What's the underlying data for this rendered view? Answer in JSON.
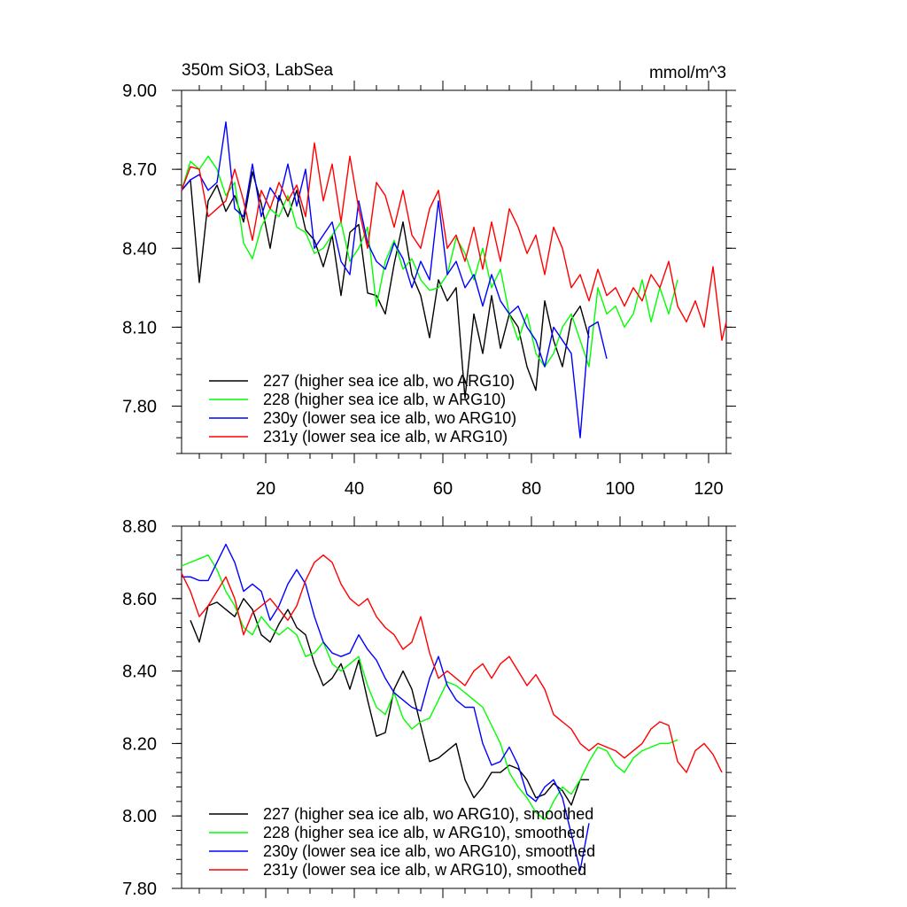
{
  "chart_data": [
    {
      "type": "line",
      "title": "350m SiO3, LabSea",
      "units": "mmol/m^3",
      "xlim": [
        1,
        124
      ],
      "ylim": [
        7.62,
        9.0
      ],
      "xticks": [
        20,
        40,
        60,
        80,
        100,
        120
      ],
      "xtick_labels": [
        "20",
        "40",
        "60",
        "80",
        "100",
        "120"
      ],
      "yticks": [
        7.8,
        8.1,
        8.4,
        8.7,
        9.0
      ],
      "ytick_labels": [
        "7.80",
        "8.10",
        "8.40",
        "8.70",
        "9.00"
      ],
      "legend_position": "bottom-left",
      "series": [
        {
          "name": "227 (higher sea ice alb, wo ARG10)",
          "color": "#000000",
          "x": [
            1,
            3,
            5,
            7,
            9,
            11,
            13,
            15,
            17,
            19,
            21,
            23,
            25,
            27,
            29,
            31,
            33,
            35,
            37,
            39,
            41,
            43,
            45,
            47,
            49,
            51,
            53,
            55,
            57,
            59,
            61,
            63,
            65,
            67,
            69,
            71,
            73,
            75,
            77,
            79,
            81,
            83,
            85,
            87,
            89,
            91,
            93
          ],
          "y": [
            8.62,
            8.66,
            8.27,
            8.58,
            8.64,
            8.54,
            8.6,
            8.5,
            8.69,
            8.57,
            8.4,
            8.6,
            8.52,
            8.62,
            8.47,
            8.43,
            8.33,
            8.45,
            8.22,
            8.46,
            8.49,
            8.23,
            8.22,
            8.15,
            8.34,
            8.5,
            8.3,
            8.22,
            8.06,
            8.28,
            8.2,
            8.25,
            7.83,
            8.15,
            8.0,
            8.22,
            8.02,
            8.15,
            8.1,
            7.95,
            7.86,
            8.2,
            8.05,
            7.95,
            8.13,
            8.18,
            8.06
          ]
        },
        {
          "name": "228 (higher sea ice alb, w ARG10)",
          "color": "#00ff00",
          "x": [
            1,
            3,
            5,
            7,
            9,
            11,
            13,
            15,
            17,
            19,
            21,
            23,
            25,
            27,
            29,
            31,
            33,
            35,
            37,
            39,
            41,
            43,
            45,
            47,
            49,
            51,
            53,
            55,
            57,
            59,
            61,
            63,
            65,
            67,
            69,
            71,
            73,
            75,
            77,
            79,
            81,
            83,
            85,
            87,
            89,
            91,
            93,
            95,
            97,
            99,
            101,
            103,
            105,
            107,
            109,
            111,
            113
          ],
          "y": [
            8.62,
            8.73,
            8.7,
            8.75,
            8.7,
            8.6,
            8.65,
            8.42,
            8.36,
            8.48,
            8.55,
            8.52,
            8.6,
            8.48,
            8.46,
            8.38,
            8.4,
            8.45,
            8.5,
            8.35,
            8.4,
            8.48,
            8.18,
            8.35,
            8.43,
            8.32,
            8.36,
            8.28,
            8.24,
            8.25,
            8.3,
            8.44,
            8.38,
            8.28,
            8.4,
            8.25,
            8.32,
            8.15,
            8.05,
            8.15,
            8.0,
            7.95,
            8.0,
            8.1,
            8.15,
            8.05,
            7.95,
            8.25,
            8.15,
            8.18,
            8.1,
            8.15,
            8.28,
            8.12,
            8.25,
            8.15,
            8.28
          ]
        },
        {
          "name": "230y (lower sea ice alb, wo ARG10)",
          "color": "#0000ff",
          "x": [
            1,
            3,
            5,
            7,
            9,
            11,
            13,
            15,
            17,
            19,
            21,
            23,
            25,
            27,
            29,
            31,
            33,
            35,
            37,
            39,
            41,
            43,
            45,
            47,
            49,
            51,
            53,
            55,
            57,
            59,
            61,
            63,
            65,
            67,
            69,
            71,
            73,
            75,
            77,
            79,
            81,
            83,
            85,
            87,
            89,
            91,
            93,
            95,
            97
          ],
          "y": [
            8.62,
            8.66,
            8.68,
            8.62,
            8.65,
            8.88,
            8.55,
            8.52,
            8.72,
            8.52,
            8.63,
            8.58,
            8.72,
            8.56,
            8.7,
            8.4,
            8.45,
            8.5,
            8.35,
            8.3,
            8.58,
            8.42,
            8.35,
            8.32,
            8.42,
            8.36,
            8.25,
            8.35,
            8.28,
            8.58,
            8.3,
            8.35,
            8.25,
            8.3,
            8.18,
            8.3,
            8.2,
            8.15,
            8.18,
            8.1,
            8.05,
            7.95,
            8.1,
            8.05,
            8.0,
            7.68,
            8.1,
            8.12,
            7.98
          ]
        },
        {
          "name": "231y (lower sea ice alb, w ARG10)",
          "color": "#ff0000",
          "x": [
            1,
            3,
            5,
            7,
            9,
            11,
            13,
            15,
            17,
            19,
            21,
            23,
            25,
            27,
            29,
            31,
            33,
            35,
            37,
            39,
            41,
            43,
            45,
            47,
            49,
            51,
            53,
            55,
            57,
            59,
            61,
            63,
            65,
            67,
            69,
            71,
            73,
            75,
            77,
            79,
            81,
            83,
            85,
            87,
            89,
            91,
            93,
            95,
            97,
            99,
            101,
            103,
            105,
            107,
            109,
            111,
            113,
            115,
            117,
            119,
            121,
            123,
            124
          ],
          "y": [
            8.62,
            8.71,
            8.7,
            8.52,
            8.55,
            8.58,
            8.7,
            8.58,
            8.43,
            8.62,
            8.55,
            8.65,
            8.58,
            8.64,
            8.52,
            8.8,
            8.58,
            8.72,
            8.5,
            8.75,
            8.55,
            8.4,
            8.65,
            8.6,
            8.48,
            8.62,
            8.45,
            8.4,
            8.55,
            8.62,
            8.4,
            8.45,
            8.35,
            8.48,
            8.32,
            8.5,
            8.35,
            8.55,
            8.48,
            8.38,
            8.45,
            8.3,
            8.48,
            8.4,
            8.25,
            8.3,
            8.2,
            8.32,
            8.22,
            8.25,
            8.18,
            8.25,
            8.2,
            8.3,
            8.25,
            8.35,
            8.18,
            8.12,
            8.2,
            8.1,
            8.33,
            8.05,
            8.12
          ]
        }
      ]
    },
    {
      "type": "line",
      "xlim": [
        1,
        124
      ],
      "ylim": [
        7.8,
        8.8
      ],
      "xticks": [
        20,
        40,
        60,
        80,
        100,
        120
      ],
      "yticks": [
        7.8,
        8.0,
        8.2,
        8.4,
        8.6,
        8.8
      ],
      "ytick_labels": [
        "7.80",
        "8.00",
        "8.20",
        "8.40",
        "8.60",
        "8.80"
      ],
      "legend_position": "bottom-left",
      "series": [
        {
          "name": "227 (higher sea ice alb, wo ARG10), smoothed",
          "color": "#000000",
          "x": [
            3,
            5,
            7,
            9,
            11,
            13,
            15,
            17,
            19,
            21,
            23,
            25,
            27,
            29,
            31,
            33,
            35,
            37,
            39,
            41,
            43,
            45,
            47,
            49,
            51,
            53,
            55,
            57,
            59,
            61,
            63,
            65,
            67,
            69,
            71,
            73,
            75,
            77,
            79,
            81,
            83,
            85,
            87,
            89,
            91,
            93
          ],
          "y": [
            8.54,
            8.48,
            8.58,
            8.59,
            8.57,
            8.55,
            8.6,
            8.57,
            8.5,
            8.48,
            8.53,
            8.57,
            8.52,
            8.5,
            8.42,
            8.36,
            8.38,
            8.42,
            8.35,
            8.43,
            8.32,
            8.22,
            8.23,
            8.35,
            8.4,
            8.35,
            8.25,
            8.15,
            8.16,
            8.18,
            8.2,
            8.1,
            8.05,
            8.08,
            8.12,
            8.12,
            8.14,
            8.13,
            8.1,
            8.05,
            8.06,
            8.09,
            8.07,
            8.03,
            8.1,
            8.1
          ]
        },
        {
          "name": "228 (higher sea ice alb, w ARG10), smoothed",
          "color": "#00ff00",
          "x": [
            1,
            3,
            5,
            7,
            9,
            11,
            13,
            15,
            17,
            19,
            21,
            23,
            25,
            27,
            29,
            31,
            33,
            35,
            37,
            39,
            41,
            43,
            45,
            47,
            49,
            51,
            53,
            55,
            57,
            59,
            61,
            63,
            65,
            67,
            69,
            71,
            73,
            75,
            77,
            79,
            81,
            83,
            85,
            87,
            89,
            91,
            93,
            95,
            97,
            99,
            101,
            103,
            105,
            107,
            109,
            111,
            113
          ],
          "y": [
            8.69,
            8.7,
            8.71,
            8.72,
            8.68,
            8.62,
            8.58,
            8.52,
            8.5,
            8.55,
            8.52,
            8.5,
            8.52,
            8.5,
            8.44,
            8.45,
            8.48,
            8.42,
            8.4,
            8.42,
            8.44,
            8.36,
            8.3,
            8.28,
            8.34,
            8.27,
            8.24,
            8.26,
            8.27,
            8.32,
            8.37,
            8.36,
            8.34,
            8.32,
            8.3,
            8.25,
            8.2,
            8.12,
            8.08,
            8.05,
            8.01,
            7.99,
            8.04,
            8.08,
            8.06,
            8.1,
            8.15,
            8.19,
            8.18,
            8.14,
            8.12,
            8.16,
            8.18,
            8.19,
            8.2,
            8.2,
            8.21
          ]
        },
        {
          "name": "230y (lower sea ice alb, wo ARG10), smoothed",
          "color": "#0000ff",
          "x": [
            1,
            3,
            5,
            7,
            9,
            11,
            13,
            15,
            17,
            19,
            21,
            23,
            25,
            27,
            29,
            31,
            33,
            35,
            37,
            39,
            41,
            43,
            45,
            47,
            49,
            51,
            53,
            55,
            57,
            59,
            61,
            63,
            65,
            67,
            69,
            71,
            73,
            75,
            77,
            79,
            81,
            83,
            85,
            87,
            89,
            91,
            93
          ],
          "y": [
            8.66,
            8.66,
            8.65,
            8.65,
            8.7,
            8.75,
            8.7,
            8.62,
            8.64,
            8.62,
            8.54,
            8.58,
            8.64,
            8.68,
            8.64,
            8.55,
            8.48,
            8.45,
            8.44,
            8.45,
            8.5,
            8.46,
            8.43,
            8.38,
            8.34,
            8.32,
            8.3,
            8.29,
            8.38,
            8.44,
            8.36,
            8.32,
            8.3,
            8.3,
            8.2,
            8.14,
            8.15,
            8.19,
            8.14,
            8.06,
            8.04,
            8.08,
            8.1,
            8.05,
            7.95,
            7.85,
            7.98
          ]
        },
        {
          "name": "231y (lower sea ice alb, w ARG10), smoothed",
          "color": "#ff0000",
          "x": [
            1,
            3,
            5,
            7,
            9,
            11,
            13,
            15,
            17,
            19,
            21,
            23,
            25,
            27,
            29,
            31,
            33,
            35,
            37,
            39,
            41,
            43,
            45,
            47,
            49,
            51,
            53,
            55,
            57,
            59,
            61,
            63,
            65,
            67,
            69,
            71,
            73,
            75,
            77,
            79,
            81,
            83,
            85,
            87,
            89,
            91,
            93,
            95,
            97,
            99,
            101,
            103,
            105,
            107,
            109,
            111,
            113,
            115,
            117,
            119,
            121,
            123
          ],
          "y": [
            8.67,
            8.62,
            8.55,
            8.58,
            8.62,
            8.66,
            8.6,
            8.5,
            8.56,
            8.58,
            8.6,
            8.57,
            8.54,
            8.58,
            8.65,
            8.7,
            8.72,
            8.7,
            8.64,
            8.6,
            8.58,
            8.6,
            8.55,
            8.52,
            8.5,
            8.46,
            8.48,
            8.55,
            8.45,
            8.38,
            8.4,
            8.38,
            8.36,
            8.4,
            8.42,
            8.38,
            8.42,
            8.44,
            8.4,
            8.36,
            8.39,
            8.35,
            8.28,
            8.26,
            8.24,
            8.2,
            8.18,
            8.2,
            8.19,
            8.18,
            8.16,
            8.18,
            8.2,
            8.24,
            8.26,
            8.25,
            8.15,
            8.12,
            8.18,
            8.2,
            8.17,
            8.12
          ]
        }
      ]
    }
  ]
}
